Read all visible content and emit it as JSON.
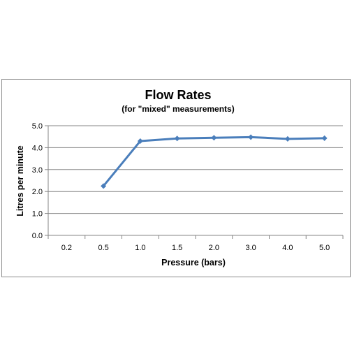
{
  "chart_data": {
    "type": "line",
    "title": "Flow Rates",
    "subtitle": "(for \"mixed\"  measurements)",
    "xlabel": "Pressure (bars)",
    "ylabel": "Litres per minute",
    "categories": [
      "0.2",
      "0.5",
      "1.0",
      "1.5",
      "2.0",
      "3.0",
      "4.0",
      "5.0"
    ],
    "y_ticks": [
      "0.0",
      "1.0",
      "2.0",
      "3.0",
      "4.0",
      "5.0"
    ],
    "ylim": [
      0,
      5
    ],
    "grid": "horizontal",
    "legend": "none",
    "series": [
      {
        "values": [
          null,
          2.25,
          4.3,
          4.42,
          4.45,
          4.48,
          4.4,
          4.43
        ],
        "color": "#4a7ebb",
        "marker": "diamond"
      }
    ]
  }
}
